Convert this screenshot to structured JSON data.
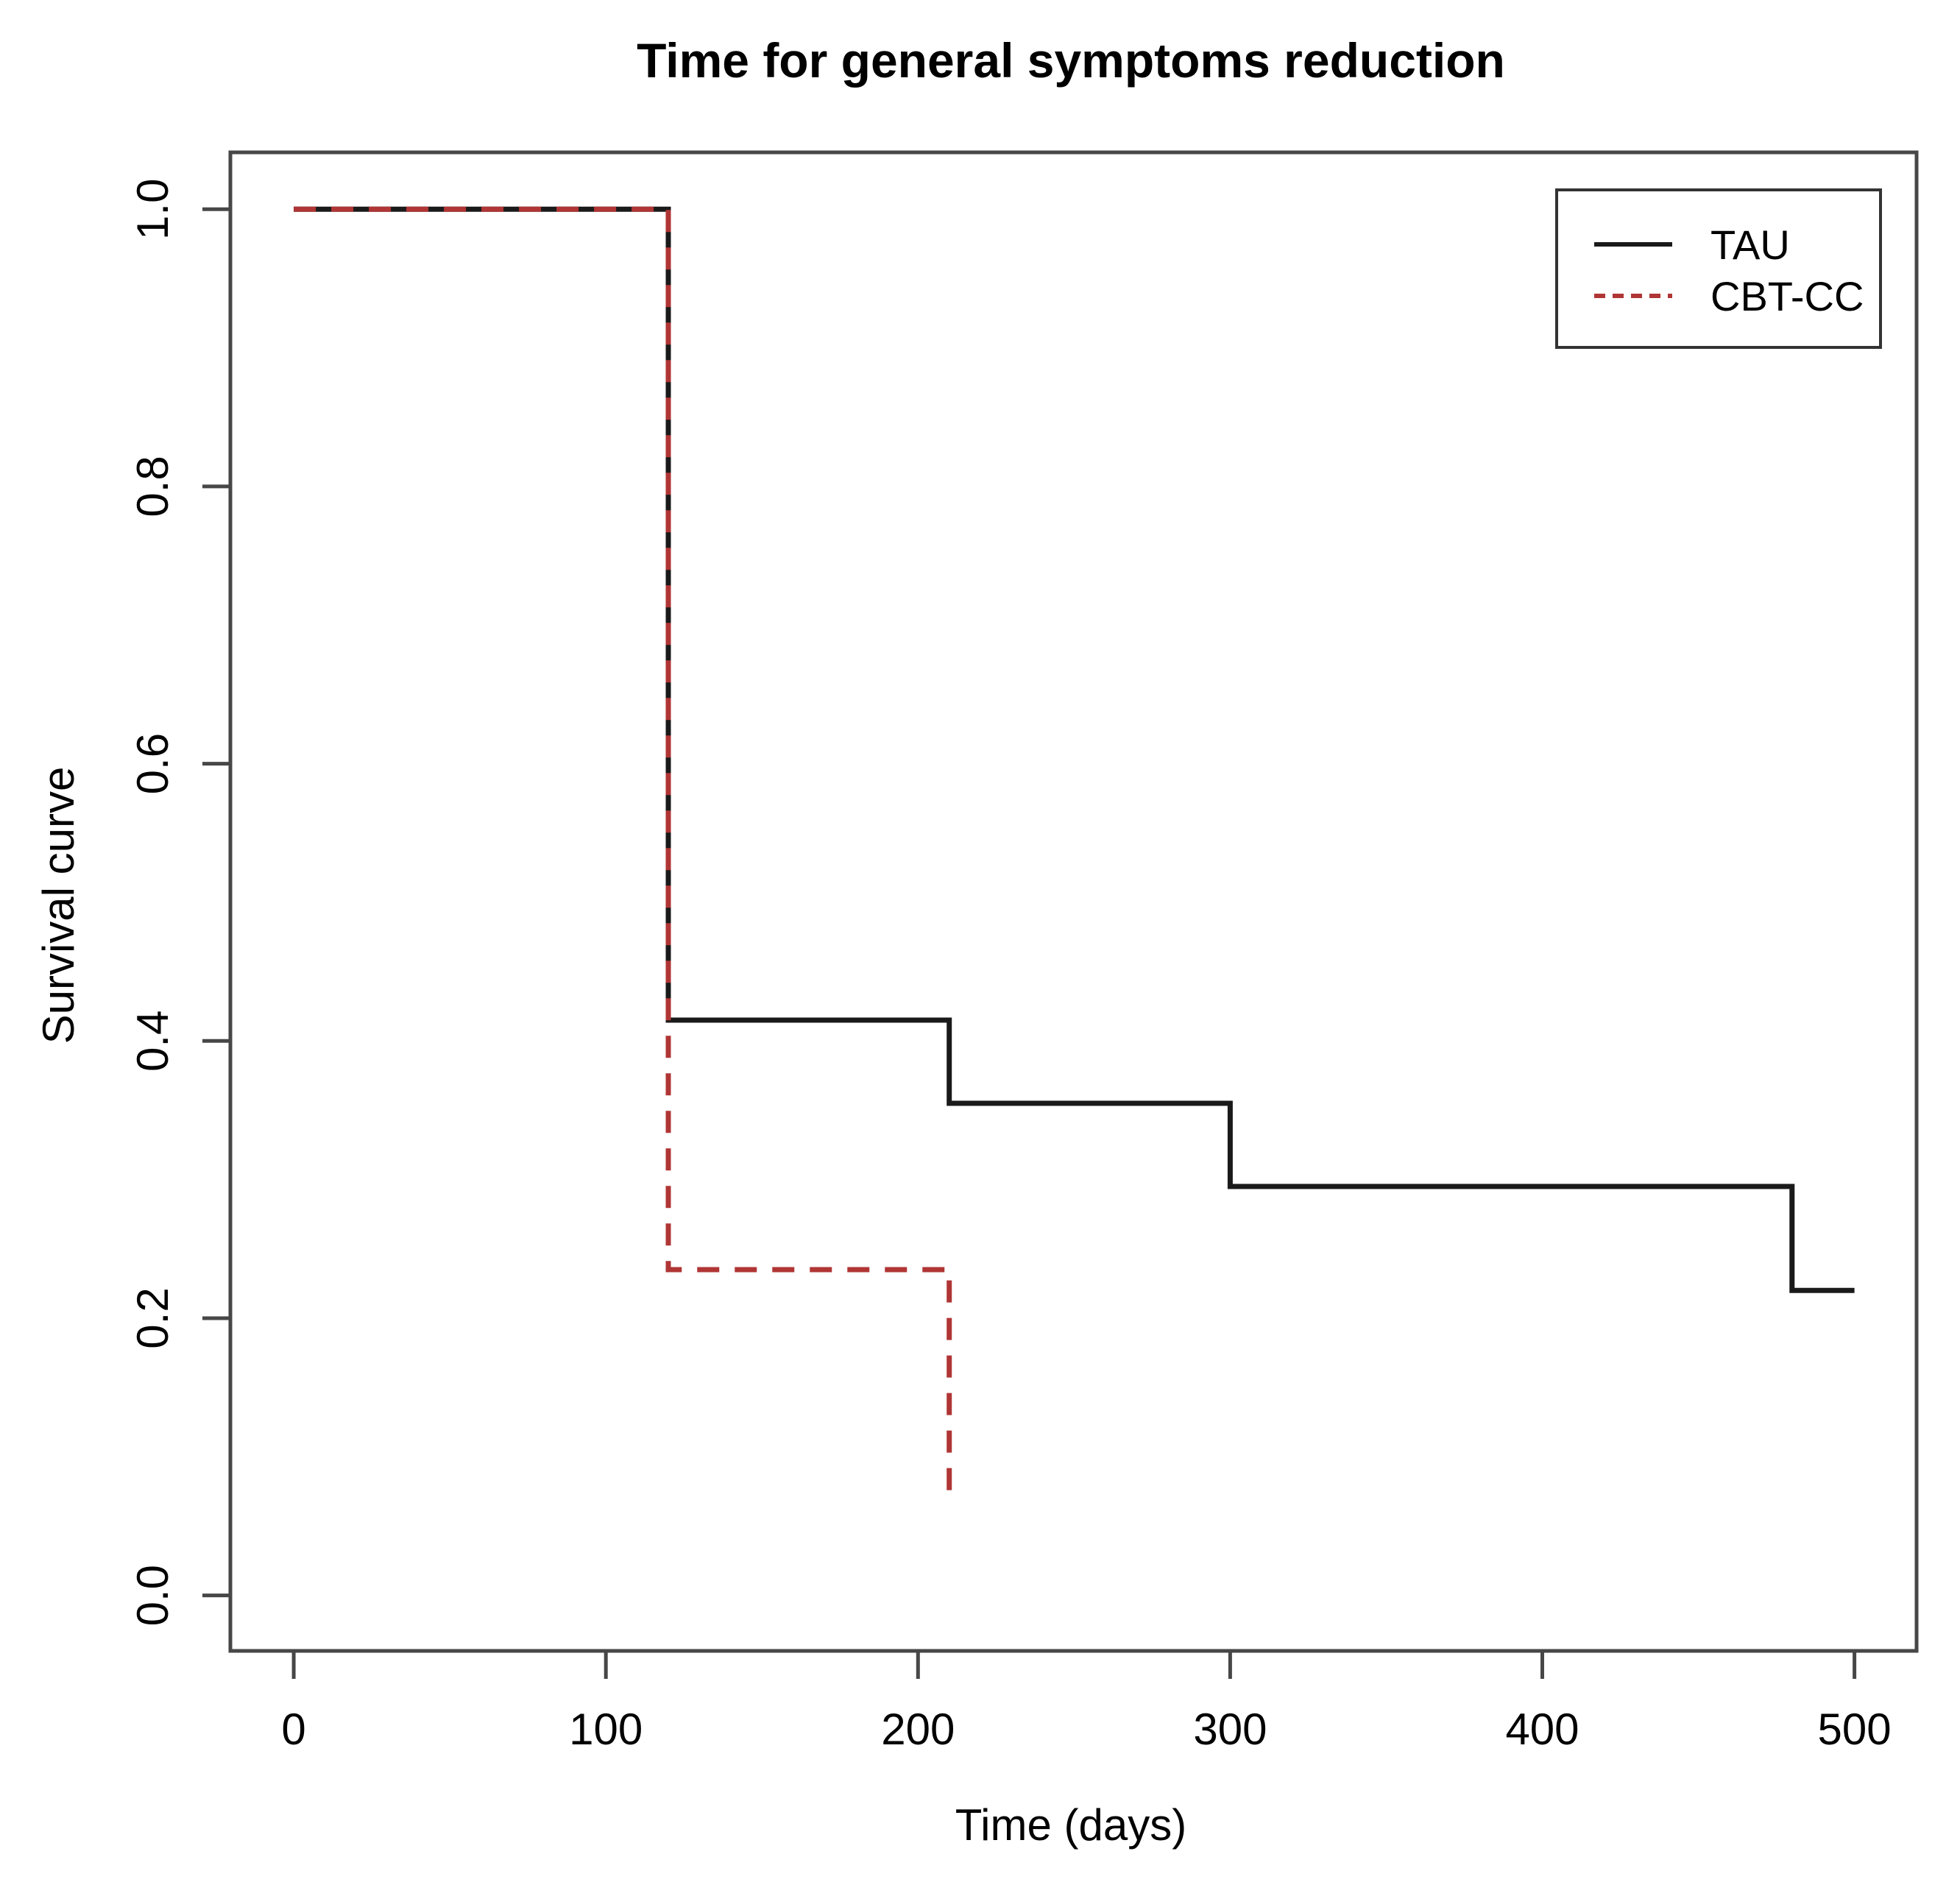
{
  "page": {
    "background": "#ffffff"
  },
  "chart": {
    "title": "Time for general symptoms reduction",
    "xlabel": "Time (days)",
    "ylabel": "Survival curve"
  },
  "chart_data": {
    "type": "line",
    "subtype": "kaplan-meier-step",
    "title": "Time for general symptoms reduction",
    "xlabel": "Time (days)",
    "ylabel": "Survival curve",
    "grid": false,
    "legend_position": "top-right",
    "xlim": [
      -20.3,
      519.9
    ],
    "ylim": [
      -0.04,
      1.041
    ],
    "x_ticks": [
      0,
      100,
      200,
      300,
      400,
      500
    ],
    "x_tick_labels": [
      "0",
      "100",
      "200",
      "300",
      "400",
      "500"
    ],
    "y_ticks": [
      0.0,
      0.2,
      0.4,
      0.6,
      0.8,
      1.0
    ],
    "y_tick_labels": [
      "0.0",
      "0.2",
      "0.4",
      "0.6",
      "0.8",
      "1.0"
    ],
    "axis_color": "#474747",
    "text_color": "#000000",
    "series": [
      {
        "name": "TAU",
        "color": "#1a1a1a",
        "style": "solid",
        "points": [
          [
            0,
            1.0
          ],
          [
            120,
            1.0
          ],
          [
            120,
            0.415
          ],
          [
            210,
            0.415
          ],
          [
            210,
            0.355
          ],
          [
            300,
            0.355
          ],
          [
            300,
            0.295
          ],
          [
            480,
            0.295
          ],
          [
            480,
            0.22
          ],
          [
            500,
            0.22
          ]
        ]
      },
      {
        "name": "CBT-CC",
        "color": "#b03535",
        "style": "dashed",
        "points": [
          [
            0,
            1.0
          ],
          [
            120,
            1.0
          ],
          [
            120,
            0.235
          ],
          [
            210,
            0.235
          ],
          [
            210,
            0.065
          ]
        ]
      }
    ]
  },
  "legend": {
    "items": [
      {
        "label": "TAU",
        "color": "#1a1a1a",
        "line_style": "solid"
      },
      {
        "label": "CBT-CC",
        "color": "#b03535",
        "line_style": "dashed"
      }
    ]
  }
}
